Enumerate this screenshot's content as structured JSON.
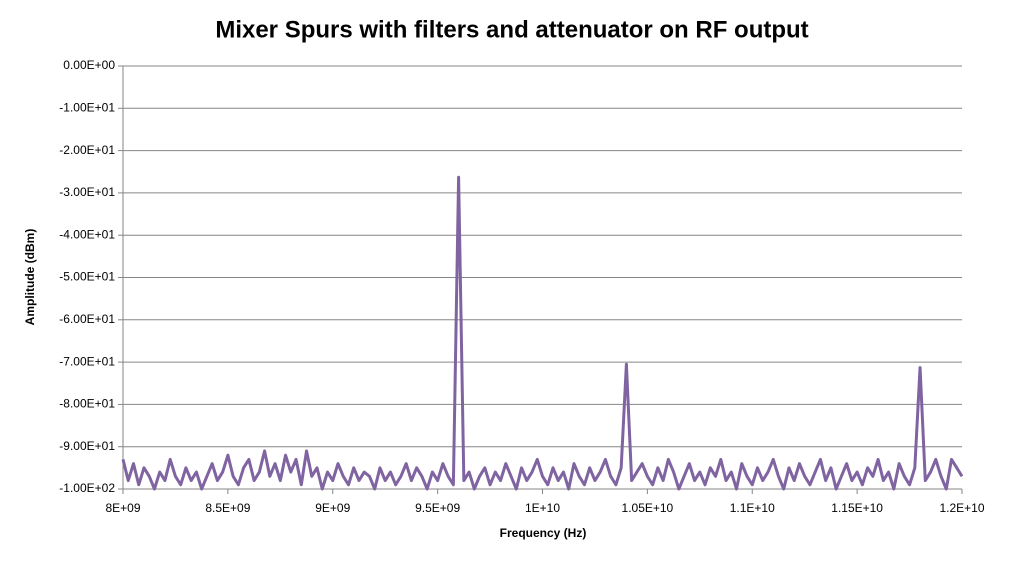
{
  "chart_data": {
    "type": "line",
    "title": "Mixer Spurs with filters and attenuator on RF output",
    "x_label": "Frequency (Hz)",
    "y_label": "Amplitude (dBm)",
    "color": "#8064a2",
    "grid": true,
    "xlim": [
      8000000000,
      12000000000
    ],
    "ylim": [
      -100,
      0
    ],
    "xticks": [
      {
        "value": 8000000000,
        "label": "8E+09"
      },
      {
        "value": 8500000000,
        "label": "8.5E+09"
      },
      {
        "value": 9000000000,
        "label": "9E+09"
      },
      {
        "value": 9500000000,
        "label": "9.5E+09"
      },
      {
        "value": 10000000000,
        "label": "1E+10"
      },
      {
        "value": 10500000000,
        "label": "1.05E+10"
      },
      {
        "value": 11000000000,
        "label": "1.1E+10"
      },
      {
        "value": 11500000000,
        "label": "1.15E+10"
      },
      {
        "value": 12000000000,
        "label": "1.2E+10"
      }
    ],
    "yticks": [
      {
        "value": 0,
        "label": "0.00E+00"
      },
      {
        "value": -10,
        "label": "-1.00E+01"
      },
      {
        "value": -20,
        "label": "-2.00E+01"
      },
      {
        "value": -30,
        "label": "-3.00E+01"
      },
      {
        "value": -40,
        "label": "-4.00E+01"
      },
      {
        "value": -50,
        "label": "-5.00E+01"
      },
      {
        "value": -60,
        "label": "-6.00E+01"
      },
      {
        "value": -70,
        "label": "-7.00E+01"
      },
      {
        "value": -80,
        "label": "-8.00E+01"
      },
      {
        "value": -90,
        "label": "-9.00E+01"
      },
      {
        "value": -100,
        "label": "-1.00E+02"
      }
    ],
    "x": [
      8000000000,
      8025000000,
      8050000000,
      8075000000,
      8100000000,
      8125000000,
      8150000000,
      8175000000,
      8200000000,
      8225000000,
      8250000000,
      8275000000,
      8300000000,
      8325000000,
      8350000000,
      8375000000,
      8400000000,
      8425000000,
      8450000000,
      8475000000,
      8500000000,
      8525000000,
      8550000000,
      8575000000,
      8600000000,
      8625000000,
      8650000000,
      8675000000,
      8700000000,
      8725000000,
      8750000000,
      8775000000,
      8800000000,
      8825000000,
      8850000000,
      8875000000,
      8900000000,
      8925000000,
      8950000000,
      8975000000,
      9000000000,
      9025000000,
      9050000000,
      9075000000,
      9100000000,
      9125000000,
      9150000000,
      9175000000,
      9200000000,
      9225000000,
      9250000000,
      9275000000,
      9300000000,
      9325000000,
      9350000000,
      9375000000,
      9400000000,
      9425000000,
      9450000000,
      9475000000,
      9500000000,
      9525000000,
      9550000000,
      9575000000,
      9600000000,
      9625000000,
      9650000000,
      9675000000,
      9700000000,
      9725000000,
      9750000000,
      9775000000,
      9800000000,
      9825000000,
      9850000000,
      9875000000,
      9900000000,
      9925000000,
      9950000000,
      9975000000,
      10000000000,
      10025000000,
      10050000000,
      10075000000,
      10100000000,
      10125000000,
      10150000000,
      10175000000,
      10200000000,
      10225000000,
      10250000000,
      10275000000,
      10300000000,
      10325000000,
      10350000000,
      10375000000,
      10400000000,
      10425000000,
      10450000000,
      10475000000,
      10500000000,
      10525000000,
      10550000000,
      10575000000,
      10600000000,
      10625000000,
      10650000000,
      10675000000,
      10700000000,
      10725000000,
      10750000000,
      10775000000,
      10800000000,
      10825000000,
      10850000000,
      10875000000,
      10900000000,
      10925000000,
      10950000000,
      10975000000,
      11000000000,
      11025000000,
      11050000000,
      11075000000,
      11100000000,
      11125000000,
      11150000000,
      11175000000,
      11200000000,
      11225000000,
      11250000000,
      11275000000,
      11300000000,
      11325000000,
      11350000000,
      11375000000,
      11400000000,
      11425000000,
      11450000000,
      11475000000,
      11500000000,
      11525000000,
      11550000000,
      11575000000,
      11600000000,
      11625000000,
      11650000000,
      11675000000,
      11700000000,
      11725000000,
      11750000000,
      11775000000,
      11800000000,
      11825000000,
      11850000000,
      11875000000,
      11900000000,
      11925000000,
      11950000000,
      11975000000,
      12000000000
    ],
    "values": [
      -93,
      -98,
      -94,
      -99,
      -95,
      -97,
      -100,
      -96,
      -98,
      -93,
      -97,
      -99,
      -95,
      -98,
      -96,
      -100,
      -97,
      -94,
      -98,
      -96,
      -92,
      -97,
      -99,
      -95,
      -93,
      -98,
      -96,
      -91,
      -97,
      -94,
      -98,
      -92,
      -96,
      -93,
      -99,
      -91,
      -97,
      -95,
      -100,
      -96,
      -98,
      -94,
      -97,
      -99,
      -95,
      -98,
      -96,
      -97,
      -100,
      -95,
      -98,
      -96,
      -99,
      -97,
      -94,
      -98,
      -95,
      -97,
      -100,
      -96,
      -98,
      -94,
      -97,
      -99,
      -26.3,
      -98,
      -96,
      -100,
      -97,
      -95,
      -99,
      -96,
      -98,
      -94,
      -97,
      -100,
      -95,
      -98,
      -96,
      -93,
      -97,
      -99,
      -95,
      -98,
      -96,
      -100,
      -94,
      -97,
      -99,
      -95,
      -98,
      -96,
      -93,
      -97,
      -99,
      -95,
      -70.5,
      -98,
      -96,
      -94,
      -97,
      -99,
      -95,
      -98,
      -93,
      -96,
      -100,
      -97,
      -94,
      -98,
      -96,
      -99,
      -95,
      -97,
      -93,
      -98,
      -96,
      -100,
      -94,
      -97,
      -99,
      -95,
      -98,
      -96,
      -93,
      -97,
      -100,
      -95,
      -98,
      -94,
      -97,
      -99,
      -96,
      -93,
      -98,
      -95,
      -100,
      -97,
      -94,
      -98,
      -96,
      -99,
      -95,
      -97,
      -93,
      -98,
      -96,
      -100,
      -94,
      -97,
      -99,
      -95,
      -71.3,
      -98,
      -96,
      -93,
      -97,
      -100,
      -93,
      -95,
      -97
    ]
  }
}
